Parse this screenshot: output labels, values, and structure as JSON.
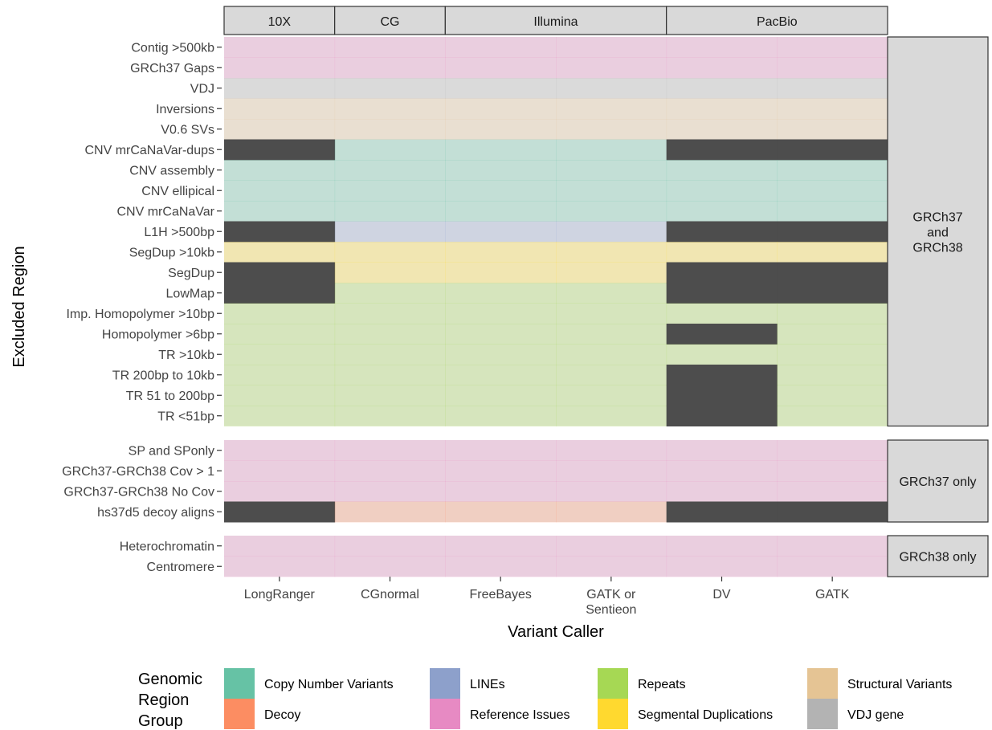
{
  "chart_data": {
    "type": "heatmap",
    "xlabel": "Variant Caller",
    "ylabel": "Excluded Region",
    "technology_groups": [
      {
        "name": "10X",
        "callers": [
          "LongRanger"
        ]
      },
      {
        "name": "CG",
        "callers": [
          "CGnormal"
        ]
      },
      {
        "name": "Illumina",
        "callers": [
          "FreeBayes",
          "GATK or Sentieon"
        ]
      },
      {
        "name": "PacBio",
        "callers": [
          "DV",
          "GATK"
        ]
      }
    ],
    "callers": [
      "LongRanger",
      "CGnormal",
      "FreeBayes",
      "GATK or Sentieon",
      "DV",
      "GATK"
    ],
    "excluded_color": "#4d4d4d",
    "legend": {
      "title": "Genomic Region Group",
      "items": [
        {
          "label": "Copy Number Variants",
          "color": "#66c2a5"
        },
        {
          "label": "LINEs",
          "color": "#8da0cb"
        },
        {
          "label": "Repeats",
          "color": "#a6d854"
        },
        {
          "label": "Structural Variants",
          "color": "#e5c494"
        },
        {
          "label": "Decoy",
          "color": "#fc8d62"
        },
        {
          "label": "Reference Issues",
          "color": "#e78ac3"
        },
        {
          "label": "Segmental Duplications",
          "color": "#ffd92f"
        },
        {
          "label": "VDJ gene",
          "color": "#b3b3b3"
        }
      ]
    },
    "panels": [
      {
        "label": "GRCh37 and GRCh38",
        "rows": [
          {
            "region": "Contig >500kb",
            "group": "Reference Issues",
            "excluded": []
          },
          {
            "region": "GRCh37 Gaps",
            "group": "Reference Issues",
            "excluded": []
          },
          {
            "region": "VDJ",
            "group": "VDJ gene",
            "excluded": []
          },
          {
            "region": "Inversions",
            "group": "Structural Variants",
            "excluded": []
          },
          {
            "region": "V0.6 SVs",
            "group": "Structural Variants",
            "excluded": []
          },
          {
            "region": "CNV mrCaNaVar-dups",
            "group": "Copy Number Variants",
            "excluded": [
              "LongRanger",
              "DV",
              "GATK"
            ]
          },
          {
            "region": "CNV assembly",
            "group": "Copy Number Variants",
            "excluded": []
          },
          {
            "region": "CNV ellipical",
            "group": "Copy Number Variants",
            "excluded": []
          },
          {
            "region": "CNV mrCaNaVar",
            "group": "Copy Number Variants",
            "excluded": []
          },
          {
            "region": "L1H >500bp",
            "group": "LINEs",
            "excluded": [
              "LongRanger",
              "DV",
              "GATK"
            ]
          },
          {
            "region": "SegDup >10kb",
            "group": "Segmental Duplications",
            "excluded": []
          },
          {
            "region": "SegDup",
            "group": "Segmental Duplications",
            "excluded": [
              "LongRanger",
              "DV",
              "GATK"
            ]
          },
          {
            "region": "LowMap",
            "group": "Repeats",
            "excluded": [
              "LongRanger",
              "DV",
              "GATK"
            ]
          },
          {
            "region": "Imp. Homopolymer >10bp",
            "group": "Repeats",
            "excluded": []
          },
          {
            "region": "Homopolymer >6bp",
            "group": "Repeats",
            "excluded": [
              "DV"
            ]
          },
          {
            "region": "TR >10kb",
            "group": "Repeats",
            "excluded": []
          },
          {
            "region": "TR 200bp to 10kb",
            "group": "Repeats",
            "excluded": [
              "DV"
            ]
          },
          {
            "region": "TR 51 to 200bp",
            "group": "Repeats",
            "excluded": [
              "DV"
            ]
          },
          {
            "region": "TR <51bp",
            "group": "Repeats",
            "excluded": [
              "DV"
            ]
          }
        ]
      },
      {
        "label": "GRCh37 only",
        "rows": [
          {
            "region": "SP and SPonly",
            "group": "Reference Issues",
            "excluded": []
          },
          {
            "region": "GRCh37-GRCh38 Cov > 1",
            "group": "Reference Issues",
            "excluded": []
          },
          {
            "region": "GRCh37-GRCh38 No Cov",
            "group": "Reference Issues",
            "excluded": []
          },
          {
            "region": "hs37d5 decoy aligns",
            "group": "Decoy",
            "excluded": [
              "LongRanger",
              "DV",
              "GATK"
            ]
          }
        ]
      },
      {
        "label": "GRCh38 only",
        "rows": [
          {
            "region": "Heterochromatin",
            "group": "Reference Issues",
            "excluded": []
          },
          {
            "region": "Centromere",
            "group": "Reference Issues",
            "excluded": []
          }
        ]
      }
    ]
  }
}
